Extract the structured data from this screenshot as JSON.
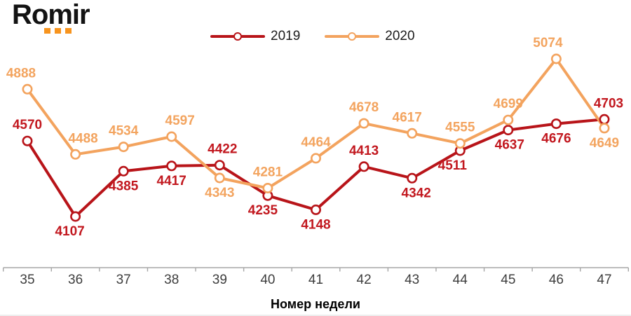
{
  "logo": {
    "text": "Romir",
    "accent_color": "#f7941e"
  },
  "chart_data": {
    "type": "line",
    "x": [
      35,
      36,
      37,
      38,
      39,
      40,
      41,
      42,
      43,
      44,
      45,
      46,
      47
    ],
    "xlabel": "Номер недели",
    "ylim": [
      3793,
      5435
    ],
    "grid": false,
    "legend_position": "top",
    "axis_color": "#a6a6a6",
    "tick_label_color": "#3d3d3d",
    "series": [
      {
        "name": "2019",
        "color": "#b81419",
        "label_color": "#c2181f",
        "values": [
          4570,
          4107,
          4385,
          4417,
          4422,
          4235,
          4148,
          4413,
          4342,
          4511,
          4637,
          4676,
          4703
        ],
        "label_side": [
          "above",
          "below",
          "below",
          "below",
          "above",
          "below",
          "below",
          "above",
          "below",
          "below",
          "below",
          "below",
          "above"
        ],
        "label_dx": [
          0,
          -8,
          0,
          0,
          4,
          -7,
          0,
          0,
          6,
          -11,
          2,
          0,
          6
        ]
      },
      {
        "name": "2020",
        "color": "#f3a35e",
        "label_color": "#f3a45f",
        "values": [
          4888,
          4488,
          4534,
          4597,
          4343,
          4281,
          4464,
          4678,
          4617,
          4555,
          4699,
          5074,
          4649
        ],
        "label_side": [
          "above",
          "above",
          "above",
          "above",
          "below",
          "above",
          "above",
          "above",
          "above",
          "above",
          "above",
          "above",
          "below"
        ],
        "label_dx": [
          -9,
          11,
          0,
          12,
          0,
          0,
          0,
          0,
          -7,
          0,
          0,
          -12,
          0
        ]
      }
    ]
  }
}
